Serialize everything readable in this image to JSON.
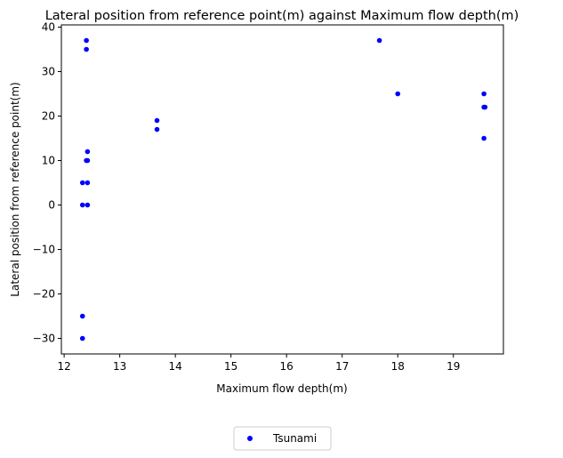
{
  "chart_data": {
    "type": "scatter",
    "title": "Lateral position from reference point(m) against Maximum flow depth(m)",
    "xlabel": "Maximum flow depth(m)",
    "ylabel": "Lateral position from reference point(m)",
    "xlim": [
      11.95,
      19.9
    ],
    "ylim": [
      -33.5,
      40.5
    ],
    "xticks": [
      12,
      13,
      14,
      15,
      16,
      17,
      18,
      19
    ],
    "yticks": [
      -30,
      -20,
      -10,
      0,
      10,
      20,
      30,
      40
    ],
    "grid": false,
    "legend_position": "bottom-center",
    "series": [
      {
        "name": "Tsunami",
        "color": "#0000ff",
        "marker": "circle",
        "points": [
          [
            12.4,
            37
          ],
          [
            12.4,
            35
          ],
          [
            12.42,
            12
          ],
          [
            12.42,
            10
          ],
          [
            12.4,
            10
          ],
          [
            12.33,
            5
          ],
          [
            12.42,
            5
          ],
          [
            12.33,
            0
          ],
          [
            12.42,
            0
          ],
          [
            12.33,
            -25
          ],
          [
            12.33,
            -30
          ],
          [
            13.67,
            19
          ],
          [
            13.67,
            17
          ],
          [
            17.67,
            37
          ],
          [
            18.0,
            25
          ],
          [
            19.55,
            25
          ],
          [
            19.55,
            22
          ],
          [
            19.57,
            22
          ],
          [
            19.55,
            15
          ]
        ]
      }
    ]
  }
}
